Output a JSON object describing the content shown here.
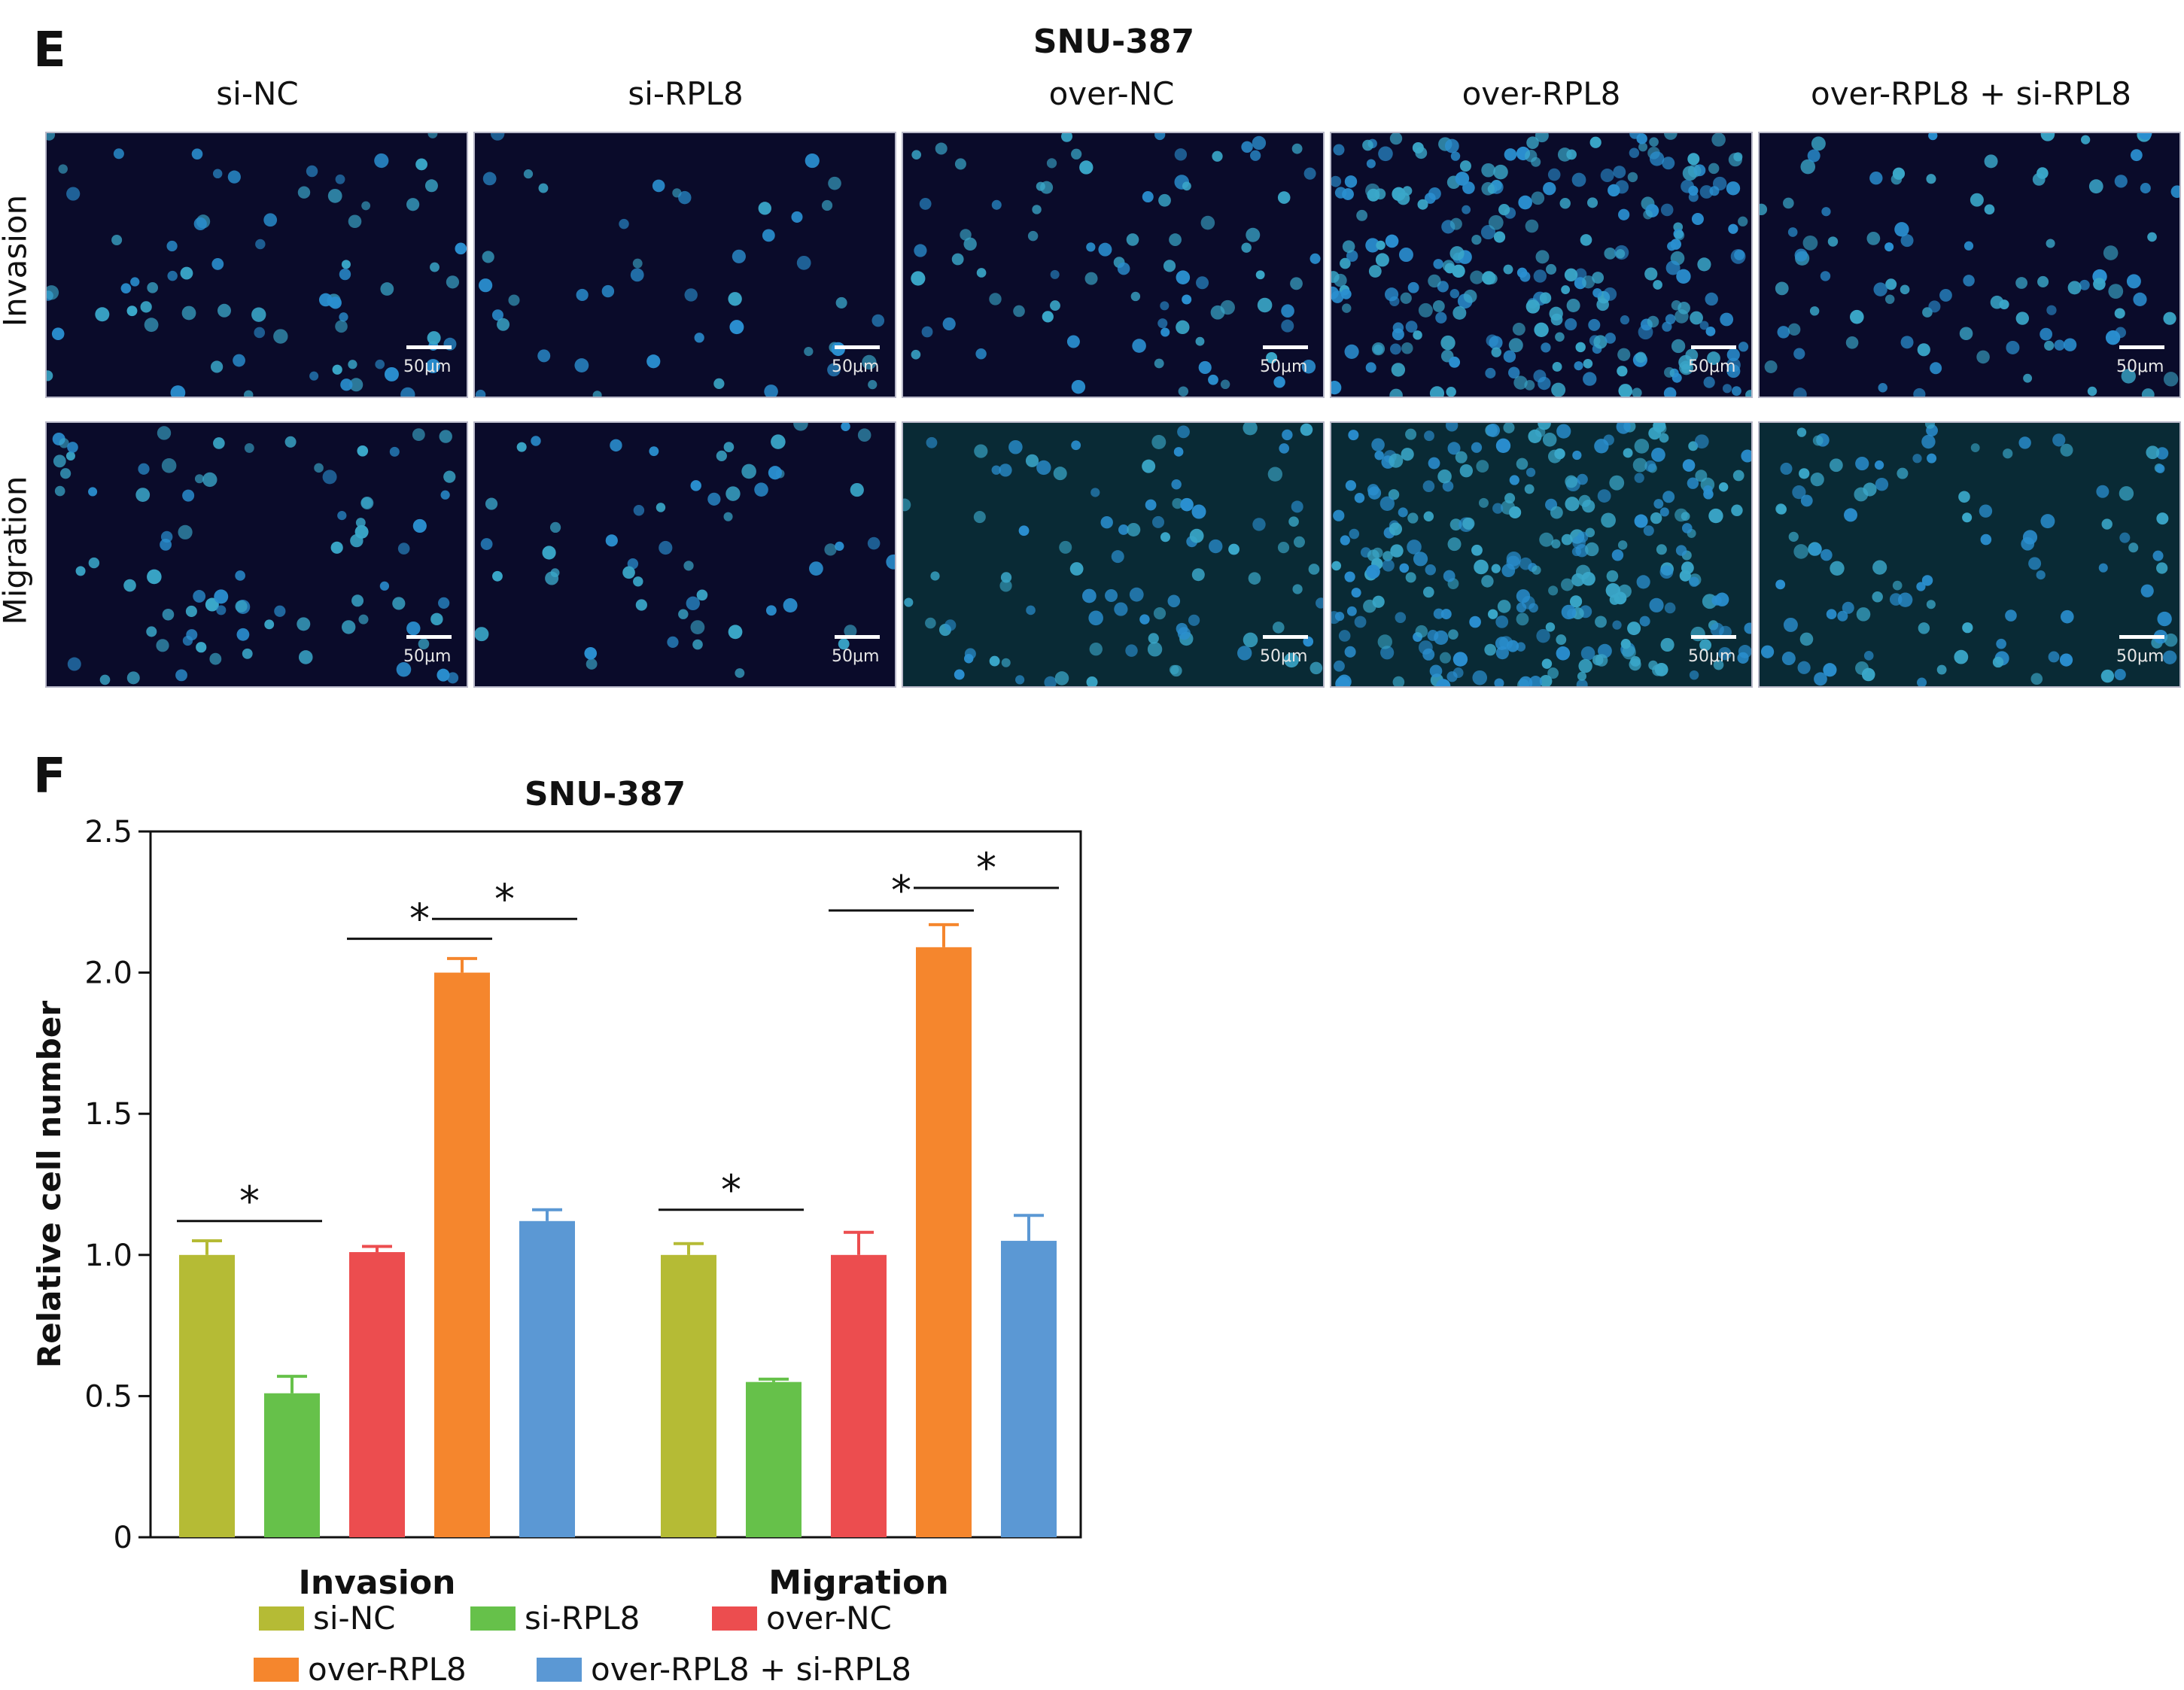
{
  "panel_e": {
    "letter": "E",
    "title": "SNU-387",
    "columns": [
      "si-NC",
      "si-RPL8",
      "over-NC",
      "over-RPL8",
      "over-RPL8 + si-RPL8"
    ],
    "rows": [
      "Invasion",
      "Migration"
    ],
    "scale_label": "50μm"
  },
  "panel_f": {
    "letter": "F",
    "significance_mark": "*"
  },
  "colors": {
    "si-NC": "#b5bb35",
    "si-RPL8": "#66c14a",
    "over-NC": "#ec4d4f",
    "over-RPL8": "#f5862d",
    "over-RPL8 + si-RPL8": "#5b98d4"
  },
  "chart_data": {
    "type": "bar",
    "title": "SNU-387",
    "xlabel": "",
    "ylabel": "Relative cell number",
    "ylim": [
      0,
      2.5
    ],
    "yticks": [
      "0",
      "0.5",
      "1.0",
      "1.5",
      "2.0",
      "2.5"
    ],
    "categories": [
      "Invasion",
      "Migration"
    ],
    "series": [
      {
        "name": "si-NC",
        "values": [
          1.0,
          1.0
        ],
        "errors": [
          0.05,
          0.04
        ]
      },
      {
        "name": "si-RPL8",
        "values": [
          0.51,
          0.55
        ],
        "errors": [
          0.06,
          0.01
        ]
      },
      {
        "name": "over-NC",
        "values": [
          1.01,
          1.0
        ],
        "errors": [
          0.02,
          0.08
        ]
      },
      {
        "name": "over-RPL8",
        "values": [
          2.0,
          2.09
        ],
        "errors": [
          0.05,
          0.08
        ]
      },
      {
        "name": "over-RPL8 + si-RPL8",
        "values": [
          1.12,
          1.05
        ],
        "errors": [
          0.04,
          0.09
        ]
      }
    ],
    "significance": [
      {
        "category": "Invasion",
        "from": "si-NC",
        "to": "si-RPL8",
        "label": "*"
      },
      {
        "category": "Invasion",
        "from": "over-NC",
        "to": "over-RPL8",
        "label": "*"
      },
      {
        "category": "Invasion",
        "from": "over-RPL8",
        "to": "over-RPL8 + si-RPL8",
        "label": "*"
      },
      {
        "category": "Migration",
        "from": "si-NC",
        "to": "si-RPL8",
        "label": "*"
      },
      {
        "category": "Migration",
        "from": "over-NC",
        "to": "over-RPL8",
        "label": "*"
      },
      {
        "category": "Migration",
        "from": "over-RPL8",
        "to": "over-RPL8 + si-RPL8",
        "label": "*"
      }
    ],
    "legend_position": "bottom"
  }
}
